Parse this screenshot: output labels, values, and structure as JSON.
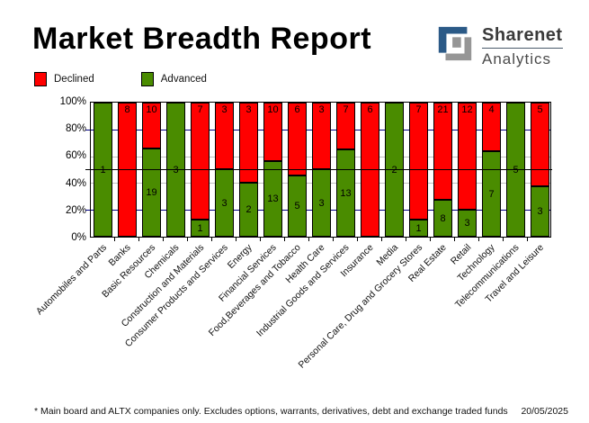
{
  "header": {
    "title": "Market Breadth Report",
    "logo": {
      "line1": "Sharenet",
      "line2": "Analytics"
    }
  },
  "legend": [
    {
      "label": "Declined",
      "color": "#ff0000"
    },
    {
      "label": "Advanced",
      "color": "#4a8c00"
    }
  ],
  "chart_data": {
    "type": "bar",
    "stacked": true,
    "normalized": "percent_of_total",
    "categories": [
      "Automobiles and Parts",
      "Banks",
      "Basic Resources",
      "Chemicals",
      "Construction and Materials",
      "Consumer Products and Services",
      "Energy",
      "Financial Services",
      "Food,Beverages and Tobacco",
      "Health Care",
      "Industrial Goods and Services",
      "Insurance",
      "Media",
      "Personal Care, Drug and Grocery Stores",
      "Real Estate",
      "Retail",
      "Technology",
      "Telecommunications",
      "Travel and Leisure"
    ],
    "series": [
      {
        "name": "Declined",
        "color": "#ff0000",
        "values": [
          0,
          8,
          10,
          0,
          7,
          3,
          3,
          10,
          6,
          3,
          7,
          6,
          0,
          7,
          21,
          12,
          4,
          0,
          5
        ]
      },
      {
        "name": "Advanced",
        "color": "#4a8c00",
        "values": [
          1,
          0,
          19,
          3,
          1,
          3,
          2,
          13,
          5,
          3,
          13,
          0,
          2,
          1,
          8,
          3,
          7,
          5,
          3
        ]
      }
    ],
    "yticks": [
      "100%",
      "80%",
      "60%",
      "40%",
      "20%",
      "0%"
    ],
    "ytick_percents": [
      100,
      80,
      60,
      40,
      20,
      0
    ],
    "ylim": [
      0,
      100
    ],
    "reference_line_percent": 50,
    "gridlines": [
      {
        "percent": 80,
        "color": "#000080"
      },
      {
        "percent": 60,
        "color": "#c0c0c0"
      },
      {
        "percent": 40,
        "color": "#c0c0c0"
      },
      {
        "percent": 20,
        "color": "#000080"
      }
    ],
    "legend_position": "top-left"
  },
  "footer": {
    "note": "* Main board and ALTX companies only. Excludes options, warrants, derivatives, debt and exchange traded funds",
    "date": "20/05/2025"
  }
}
